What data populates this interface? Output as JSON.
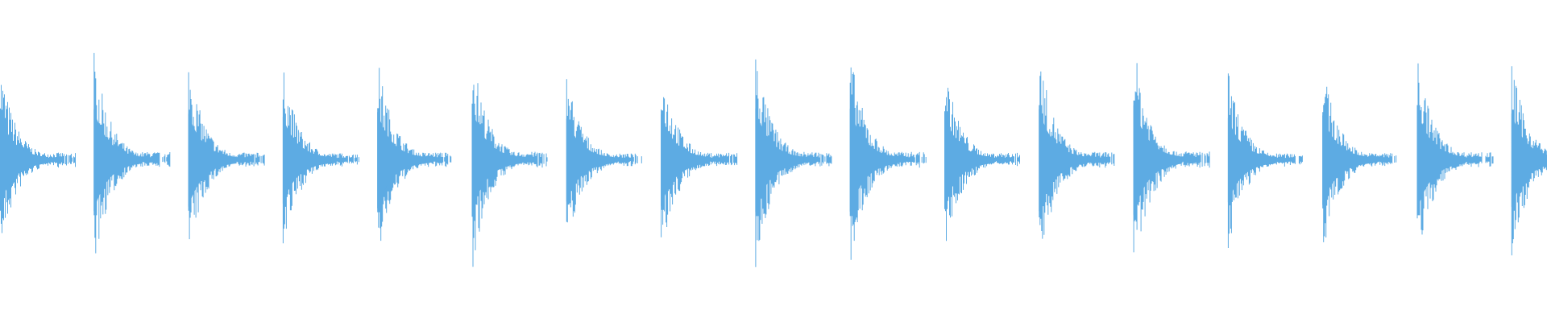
{
  "waveform": {
    "color": "#5DABE3",
    "background": "#FFFFFF",
    "burst_count": 17,
    "peak_amplitudes": [
      0.66,
      0.72,
      0.66,
      0.61,
      0.68,
      0.74,
      0.58,
      0.65,
      0.73,
      0.73,
      0.64,
      0.72,
      0.78,
      0.59,
      0.63,
      0.72,
      0.66
    ]
  }
}
